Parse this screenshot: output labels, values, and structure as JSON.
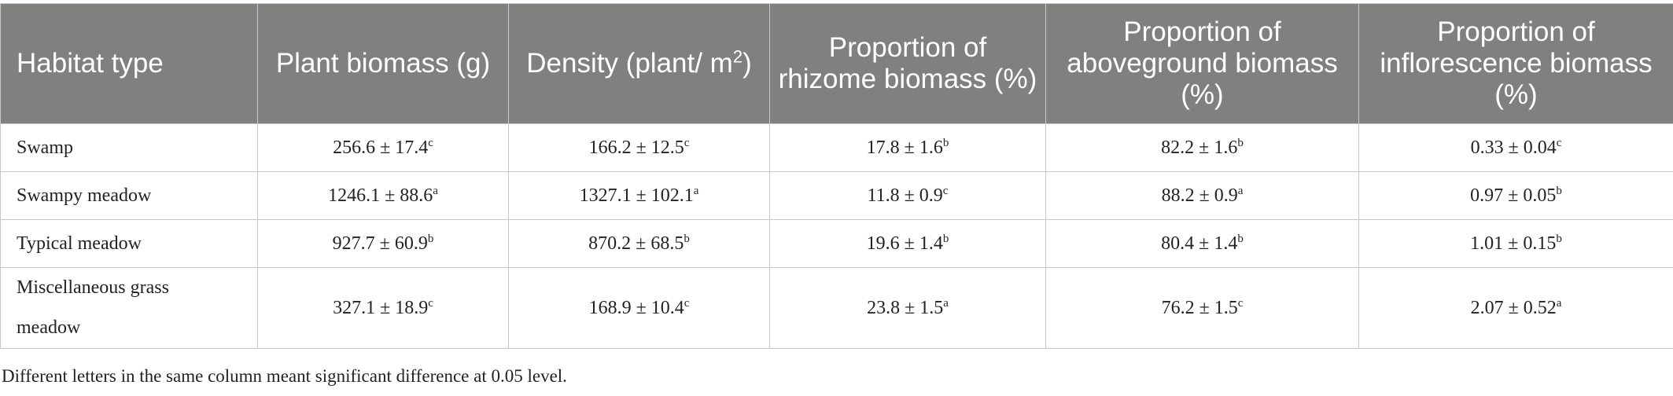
{
  "table": {
    "headers": [
      "Habitat type",
      "Plant biomass (g)",
      {
        "text": "Density (plant/ m",
        "sup": "2",
        "tail": ")"
      },
      "Proportion of rhizome biomass (%)",
      "Proportion of aboveground biomass (%)",
      "Proportion of inflorescence biomass (%)"
    ],
    "rows": [
      [
        "Swamp",
        {
          "text": "256.6 ± 17.4",
          "sup": "c"
        },
        {
          "text": "166.2 ± 12.5",
          "sup": "c"
        },
        {
          "text": "17.8 ± 1.6",
          "sup": "b"
        },
        {
          "text": "82.2 ± 1.6",
          "sup": "b"
        },
        {
          "text": "0.33 ± 0.04",
          "sup": "c"
        }
      ],
      [
        "Swampy meadow",
        {
          "text": "1246.1 ± 88.6",
          "sup": "a"
        },
        {
          "text": "1327.1 ± 102.1",
          "sup": "a"
        },
        {
          "text": "11.8 ± 0.9",
          "sup": "c"
        },
        {
          "text": "88.2 ± 0.9",
          "sup": "a"
        },
        {
          "text": "0.97 ± 0.05",
          "sup": "b"
        }
      ],
      [
        "Typical meadow",
        {
          "text": "927.7 ± 60.9",
          "sup": "b"
        },
        {
          "text": "870.2 ± 68.5",
          "sup": "b"
        },
        {
          "text": "19.6 ± 1.4",
          "sup": "b"
        },
        {
          "text": "80.4 ± 1.4",
          "sup": "b"
        },
        {
          "text": "1.01 ± 0.15",
          "sup": "b"
        }
      ],
      [
        "Miscellaneous grass meadow",
        {
          "text": "327.1 ± 18.9",
          "sup": "c"
        },
        {
          "text": "168.9 ± 10.4",
          "sup": "c"
        },
        {
          "text": "23.8 ± 1.5",
          "sup": "a"
        },
        {
          "text": "76.2 ± 1.5",
          "sup": "c"
        },
        {
          "text": "2.07 ± 0.52",
          "sup": "a"
        }
      ]
    ]
  },
  "footnote": "Different letters in the same column meant significant difference at 0.05 level."
}
